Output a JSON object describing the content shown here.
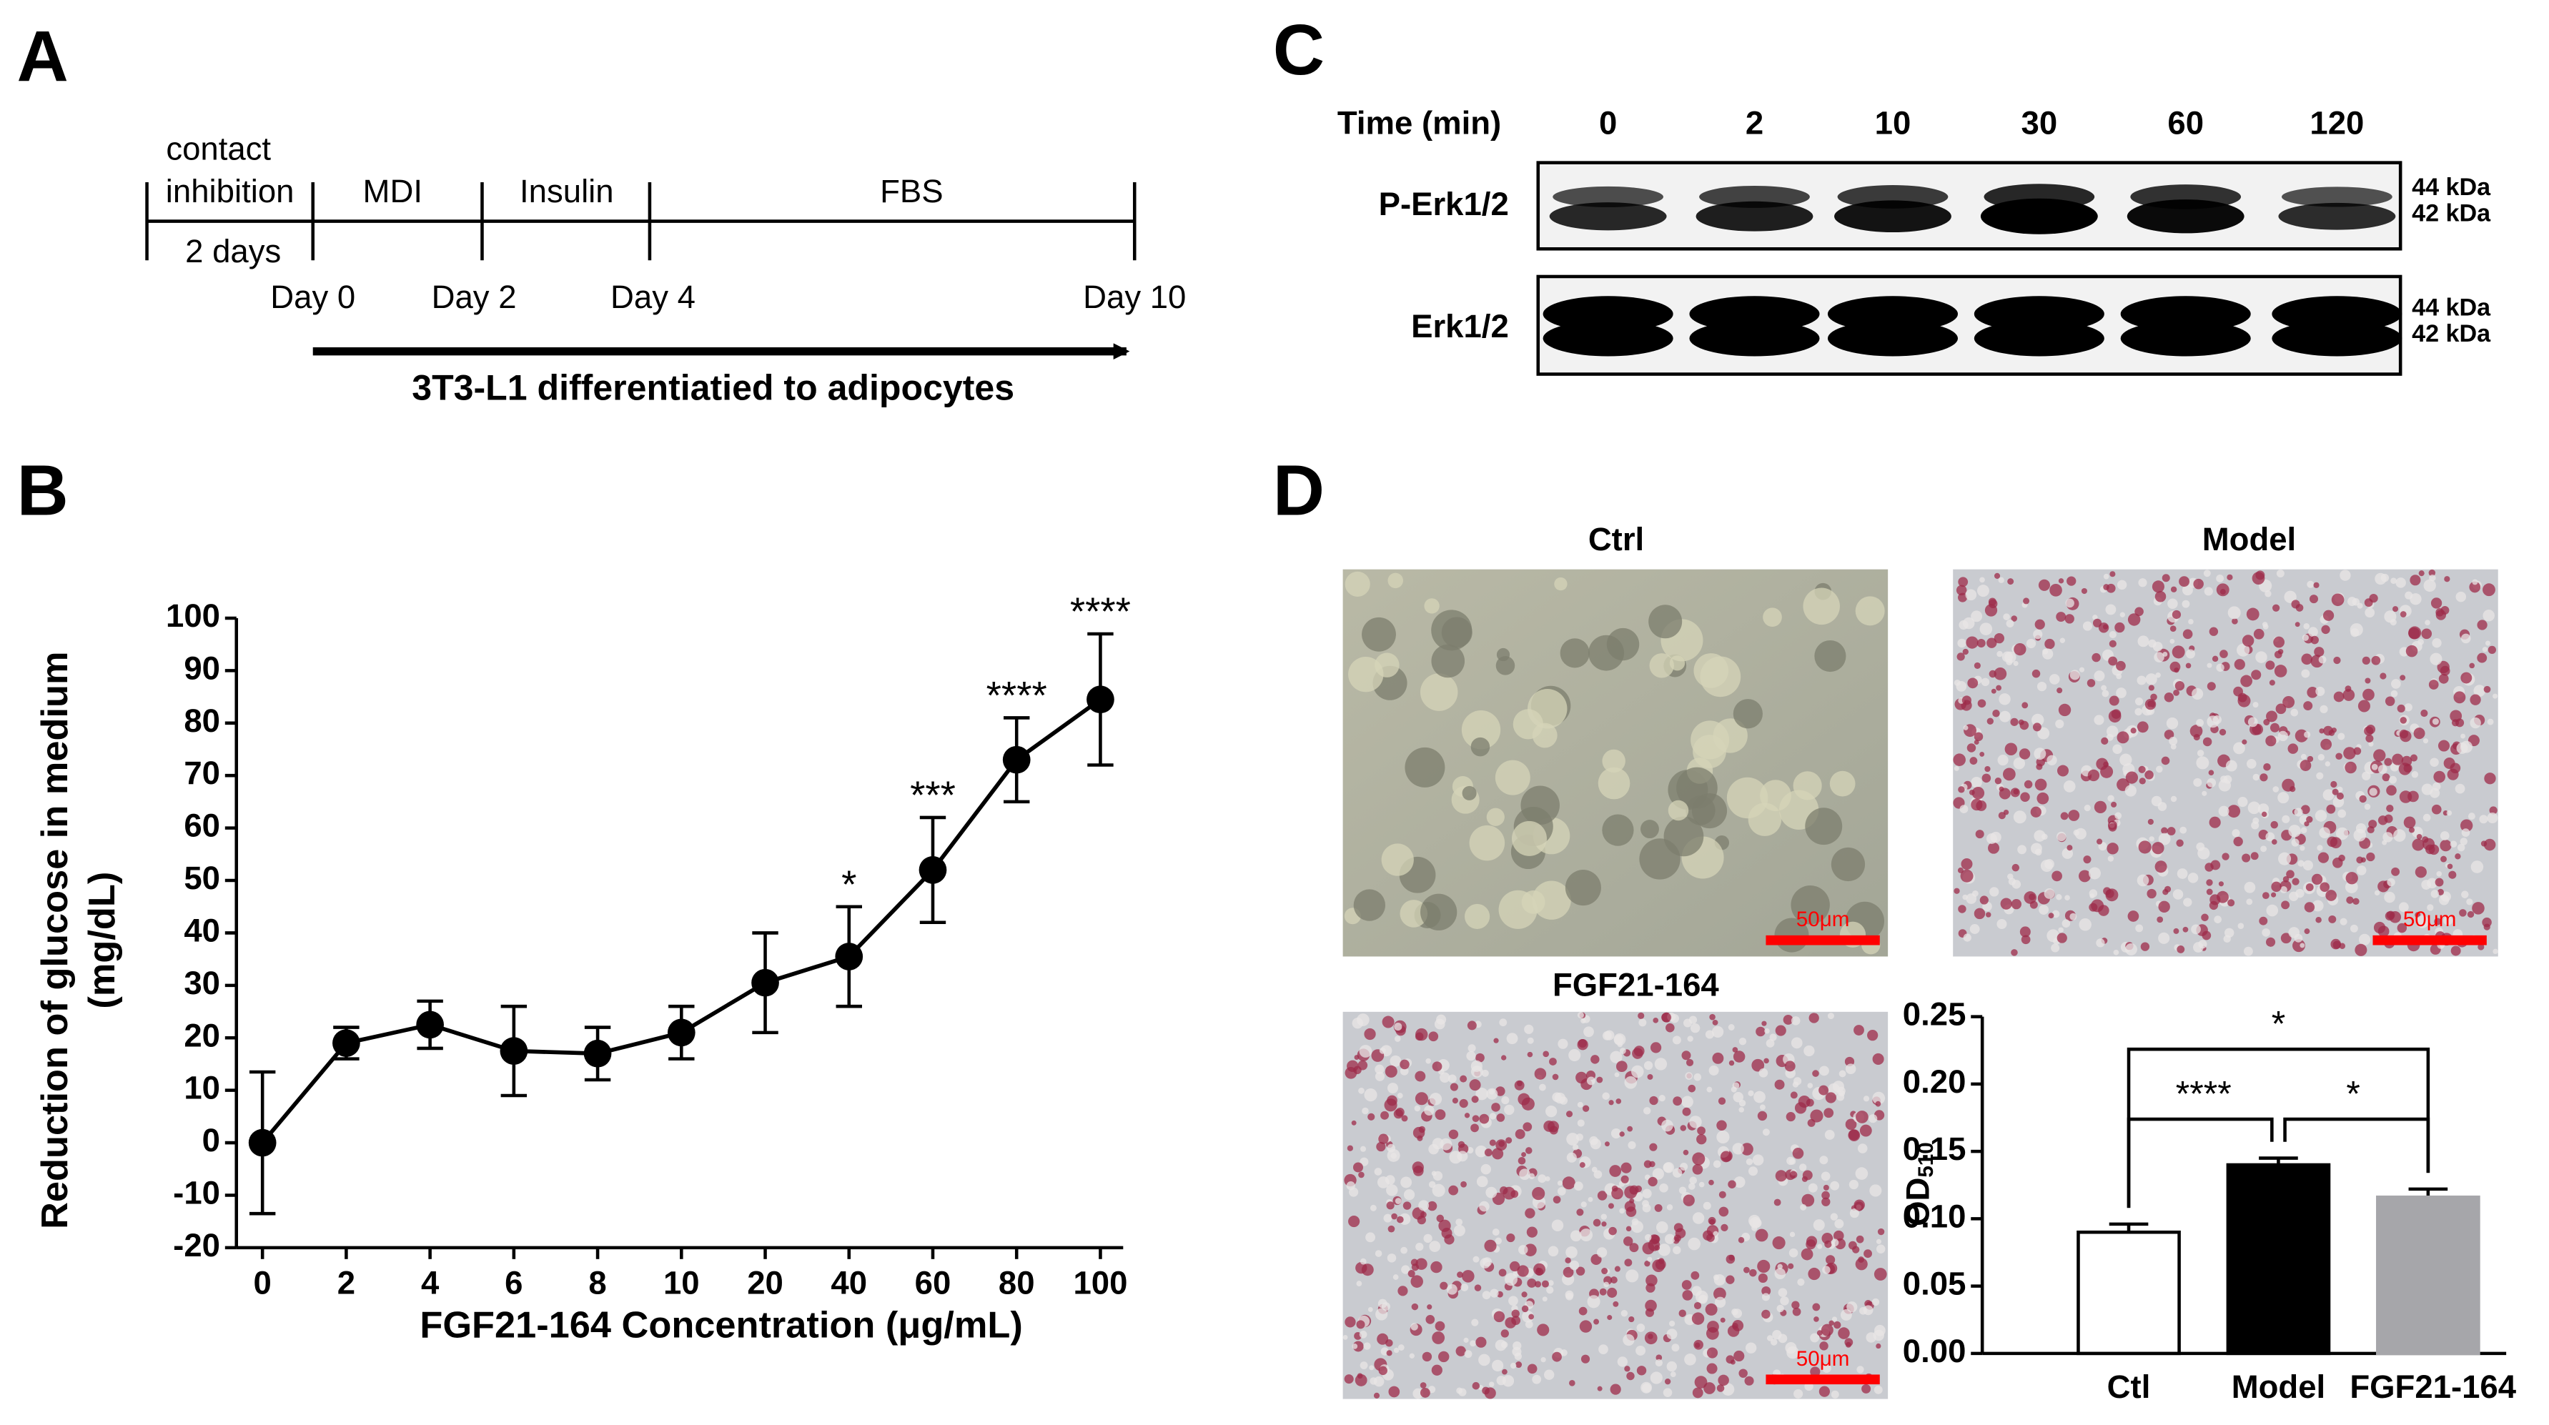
{
  "panel_a": {
    "letter": "A",
    "phase_labels": [
      "contact",
      "inhibition",
      "MDI",
      "Insulin",
      "FBS"
    ],
    "duration": "2 days",
    "days": [
      "Day 0",
      "Day 2",
      "Day 4",
      "Day 10"
    ],
    "arrow_label": "3T3-L1 differentiatied to adipocytes"
  },
  "panel_c": {
    "letter": "C",
    "time_label": "Time (min)",
    "lanes": [
      "0",
      "2",
      "10",
      "30",
      "60",
      "120"
    ],
    "rows": [
      "P-Erk1/2",
      "Erk1/2"
    ],
    "sizes": [
      "44 kDa",
      "42 kDa"
    ]
  },
  "panel_d": {
    "letter": "D",
    "images": [
      "Ctrl",
      "Model",
      "FGF21-164"
    ],
    "scale_bar": "50μm"
  },
  "panel_b": {
    "letter": "B"
  },
  "chart_data": [
    {
      "type": "line",
      "categories": [
        "0",
        "2",
        "4",
        "6",
        "8",
        "10",
        "20",
        "40",
        "60",
        "80",
        "100"
      ],
      "values": [
        0,
        19,
        22.5,
        17.5,
        17,
        21,
        30.5,
        35.5,
        52,
        73,
        84.5
      ],
      "errors": [
        13.5,
        3,
        4.5,
        8.5,
        5,
        5,
        9.5,
        9.5,
        10,
        8,
        12.5
      ],
      "significance": [
        null,
        null,
        null,
        null,
        null,
        null,
        null,
        "*",
        "***",
        "****",
        "****"
      ],
      "color": "#000000",
      "ylim": [
        -20,
        100
      ],
      "yticks": [
        -20,
        -10,
        0,
        10,
        20,
        30,
        40,
        50,
        60,
        70,
        80,
        90,
        100
      ],
      "ylabel": [
        "Reduction of glucose in medium",
        "(mg/dL)"
      ],
      "xlabel": "FGF21-164 Concentration (μg/mL)"
    },
    {
      "type": "bar",
      "categories": [
        "Ctl",
        "Model",
        "FGF21-164"
      ],
      "values": [
        0.09,
        0.14,
        0.116
      ],
      "errors": [
        0.006,
        0.005,
        0.006
      ],
      "colors": [
        "#ffffff",
        "#000000",
        "#a6a6aa"
      ],
      "ylim": [
        0,
        0.25
      ],
      "yticks": [
        {
          "value": 0,
          "label": "0.00"
        },
        {
          "value": 0.05,
          "label": "0.05"
        },
        {
          "value": 0.1,
          "label": "0.10"
        },
        {
          "value": 0.15,
          "label": "0.15"
        },
        {
          "value": 0.2,
          "label": "0.20"
        },
        {
          "value": 0.25,
          "label": "0.25"
        }
      ],
      "ylabel": {
        "main": "OD",
        "sub": "510"
      },
      "comparisons": [
        {
          "from": 0,
          "to": 2,
          "text": "*"
        },
        {
          "from": 0,
          "to": 1,
          "text": "****"
        },
        {
          "from": 1,
          "to": 2,
          "text": "*"
        }
      ]
    }
  ]
}
